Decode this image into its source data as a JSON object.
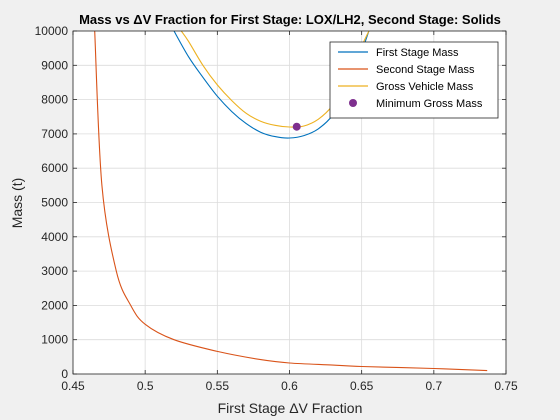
{
  "chart_data": {
    "type": "line",
    "title": "Mass vs ΔV Fraction for First Stage: LOX/LH2, Second Stage: Solids",
    "xlabel": "First Stage ΔV Fraction",
    "ylabel": "Mass (t)",
    "xlim": [
      0.45,
      0.75
    ],
    "ylim": [
      0,
      10000
    ],
    "xticks": [
      0.45,
      0.5,
      0.55,
      0.6,
      0.65,
      0.7,
      0.75
    ],
    "xtick_labels": [
      "0.45",
      "0.5",
      "0.55",
      "0.6",
      "0.65",
      "0.7",
      "0.75"
    ],
    "yticks": [
      0,
      1000,
      2000,
      3000,
      4000,
      5000,
      6000,
      7000,
      8000,
      9000,
      10000
    ],
    "ytick_labels": [
      "0",
      "1000",
      "2000",
      "3000",
      "4000",
      "5000",
      "6000",
      "7000",
      "8000",
      "9000",
      "10000"
    ],
    "grid": true,
    "legend_position": "top-right",
    "series": [
      {
        "name": "First Stage Mass",
        "color": "#0072bd",
        "x": [
          0.52,
          0.53,
          0.54,
          0.55,
          0.56,
          0.57,
          0.58,
          0.59,
          0.6,
          0.61,
          0.62,
          0.63,
          0.64,
          0.65,
          0.655
        ],
        "y": [
          10000,
          9250,
          8650,
          8100,
          7650,
          7300,
          7050,
          6920,
          6880,
          6950,
          7150,
          7550,
          8300,
          9400,
          10000
        ]
      },
      {
        "name": "Second Stage Mass",
        "color": "#d95319",
        "x": [
          0.465,
          0.47,
          0.48,
          0.49,
          0.5,
          0.52,
          0.55,
          0.58,
          0.6,
          0.63,
          0.65,
          0.7,
          0.737
        ],
        "y": [
          10000,
          5500,
          3000,
          2000,
          1450,
          1000,
          660,
          420,
          320,
          260,
          220,
          160,
          100
        ]
      },
      {
        "name": "Gross Vehicle Mass",
        "color": "#edb120",
        "x": [
          0.525,
          0.53,
          0.54,
          0.55,
          0.56,
          0.57,
          0.58,
          0.59,
          0.6,
          0.61,
          0.62,
          0.63,
          0.64,
          0.65,
          0.655
        ],
        "y": [
          10000,
          9700,
          9000,
          8430,
          7970,
          7600,
          7370,
          7250,
          7200,
          7230,
          7430,
          7830,
          8500,
          9550,
          10000
        ]
      }
    ],
    "markers": [
      {
        "name": "Minimum Gross Mass",
        "color": "#7e2f8e",
        "x": 0.605,
        "y": 7210
      }
    ]
  }
}
